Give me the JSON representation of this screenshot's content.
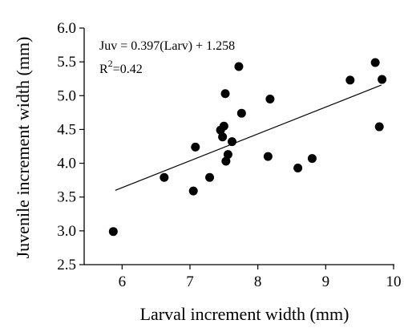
{
  "chart_data": {
    "type": "scatter",
    "title": "",
    "xlabel": "Larval increment width (mm)",
    "ylabel": "Juvenile increment width (mm)",
    "xlim": [
      5.5,
      10
    ],
    "ylim": [
      2.5,
      6.0
    ],
    "x_ticks": [
      6,
      7,
      8,
      9,
      10
    ],
    "y_ticks": [
      2.5,
      3.0,
      3.5,
      4.0,
      4.5,
      5.0,
      5.5,
      6.0
    ],
    "x_tick_labels": [
      "6",
      "7",
      "8",
      "9",
      "10"
    ],
    "y_tick_labels": [
      "2.5",
      "3.0",
      "3.5",
      "4.0",
      "4.5",
      "5.0",
      "5.5",
      "6.0"
    ],
    "grid": false,
    "annotations": {
      "equation": "Juv = 0.397(Larv) + 1.258",
      "r2_prefix": "R",
      "r2_sup": "2",
      "r2_suffix": "=0.42"
    },
    "trendline": {
      "slope": 0.397,
      "intercept": 1.258,
      "x_range": [
        5.9,
        9.82
      ]
    },
    "points": [
      {
        "x": 5.87,
        "y": 2.99
      },
      {
        "x": 6.62,
        "y": 3.79
      },
      {
        "x": 7.05,
        "y": 3.59
      },
      {
        "x": 7.08,
        "y": 4.24
      },
      {
        "x": 7.29,
        "y": 3.79
      },
      {
        "x": 7.45,
        "y": 4.49
      },
      {
        "x": 7.48,
        "y": 4.39
      },
      {
        "x": 7.5,
        "y": 4.55
      },
      {
        "x": 7.52,
        "y": 5.03
      },
      {
        "x": 7.53,
        "y": 4.03
      },
      {
        "x": 7.56,
        "y": 4.13
      },
      {
        "x": 7.62,
        "y": 4.32
      },
      {
        "x": 7.72,
        "y": 5.43
      },
      {
        "x": 7.76,
        "y": 4.74
      },
      {
        "x": 8.15,
        "y": 4.1
      },
      {
        "x": 8.18,
        "y": 4.95
      },
      {
        "x": 8.59,
        "y": 3.93
      },
      {
        "x": 8.8,
        "y": 4.07
      },
      {
        "x": 9.36,
        "y": 5.23
      },
      {
        "x": 9.73,
        "y": 5.49
      },
      {
        "x": 9.79,
        "y": 4.54
      },
      {
        "x": 9.83,
        "y": 5.24
      }
    ]
  }
}
